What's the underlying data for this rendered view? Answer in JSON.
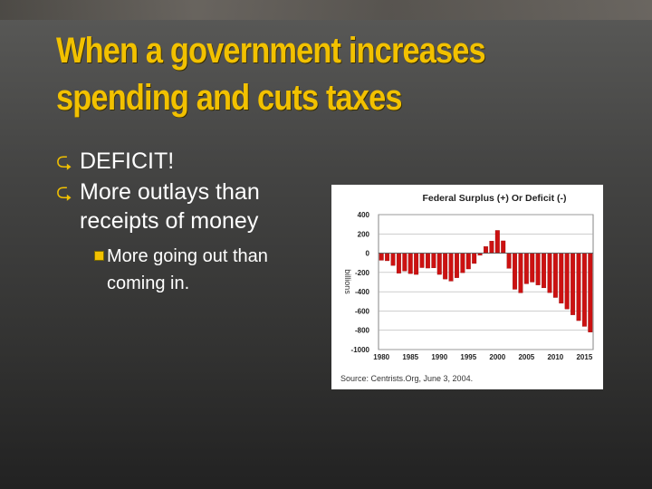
{
  "slide": {
    "title_lines": [
      "When a government increases",
      "spending and cuts taxes"
    ],
    "bullets": [
      {
        "icon": "curved-arrow-icon",
        "text": "DEFICIT!"
      },
      {
        "icon": "curved-arrow-icon",
        "text": "More outlays than receipts of money"
      }
    ],
    "sub_bullet": {
      "icon": "square-bullet-icon",
      "text": "More going out than coming in."
    },
    "colors": {
      "title": "#f2c100",
      "text": "#ffffff",
      "bar": "#cc1111"
    }
  },
  "chart_data": {
    "type": "bar",
    "title": "Federal Surplus (+) Or Deficit (-)",
    "ylabel": "billions",
    "source": "Source:  Centrists.Org, June 3, 2004.",
    "ylim": [
      -1000,
      400
    ],
    "yticks": [
      400,
      200,
      0,
      -200,
      -400,
      -600,
      -800,
      -1000
    ],
    "xticks": [
      1980,
      1985,
      1990,
      1995,
      2000,
      2005,
      2010,
      2015
    ],
    "grid": true,
    "x": [
      1980,
      1981,
      1982,
      1983,
      1984,
      1985,
      1986,
      1987,
      1988,
      1989,
      1990,
      1991,
      1992,
      1993,
      1994,
      1995,
      1996,
      1997,
      1998,
      1999,
      2000,
      2001,
      2002,
      2003,
      2004,
      2005,
      2006,
      2007,
      2008,
      2009,
      2010,
      2011,
      2012,
      2013,
      2014,
      2015,
      2016
    ],
    "values": [
      -74,
      -79,
      -128,
      -208,
      -185,
      -212,
      -221,
      -150,
      -155,
      -153,
      -221,
      -269,
      -290,
      -255,
      -203,
      -164,
      -107,
      -22,
      69,
      126,
      236,
      128,
      -158,
      -375,
      -412,
      -318,
      -300,
      -330,
      -360,
      -410,
      -460,
      -520,
      -580,
      -640,
      -700,
      -760,
      -820
    ]
  }
}
